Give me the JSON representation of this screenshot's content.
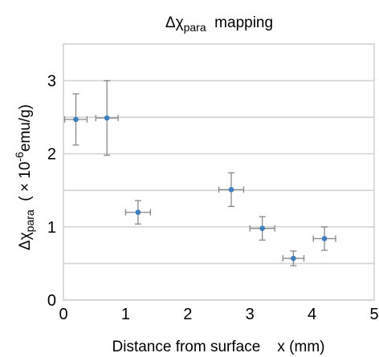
{
  "chart_data": {
    "type": "scatter",
    "title": {
      "prefix": "Δχ",
      "sub": "para",
      "suffix": "  mapping"
    },
    "xlabel": "Distance from surface    x (mm)",
    "ylabel": {
      "prefix": "Δχ",
      "sub": "para",
      "middle": "  ( × 10",
      "sup": "-6",
      "suffix": "emu/g)"
    },
    "xlim": [
      0,
      5
    ],
    "ylim": [
      0,
      3.5
    ],
    "x_ticks": [
      "0",
      "1",
      "2",
      "3",
      "4",
      "5"
    ],
    "y_ticks": [
      "0",
      "1",
      "2",
      "3"
    ],
    "grid": {
      "horizontal": true,
      "y_values": [
        0.5,
        1.0,
        1.5,
        2.0,
        2.5,
        3.0
      ]
    },
    "marker_color": "#3d7ebf",
    "errorbar_color": "#888888",
    "points": [
      {
        "x": 0.2,
        "y": 2.47,
        "xerr": 0.18,
        "yerr": 0.35
      },
      {
        "x": 0.7,
        "y": 2.49,
        "xerr": 0.18,
        "yerr": 0.51
      },
      {
        "x": 1.2,
        "y": 1.2,
        "xerr": 0.2,
        "yerr": 0.16
      },
      {
        "x": 2.7,
        "y": 1.51,
        "xerr": 0.2,
        "yerr": 0.23
      },
      {
        "x": 3.2,
        "y": 0.98,
        "xerr": 0.2,
        "yerr": 0.16
      },
      {
        "x": 3.7,
        "y": 0.57,
        "xerr": 0.17,
        "yerr": 0.1
      },
      {
        "x": 4.2,
        "y": 0.84,
        "xerr": 0.18,
        "yerr": 0.16
      }
    ]
  }
}
